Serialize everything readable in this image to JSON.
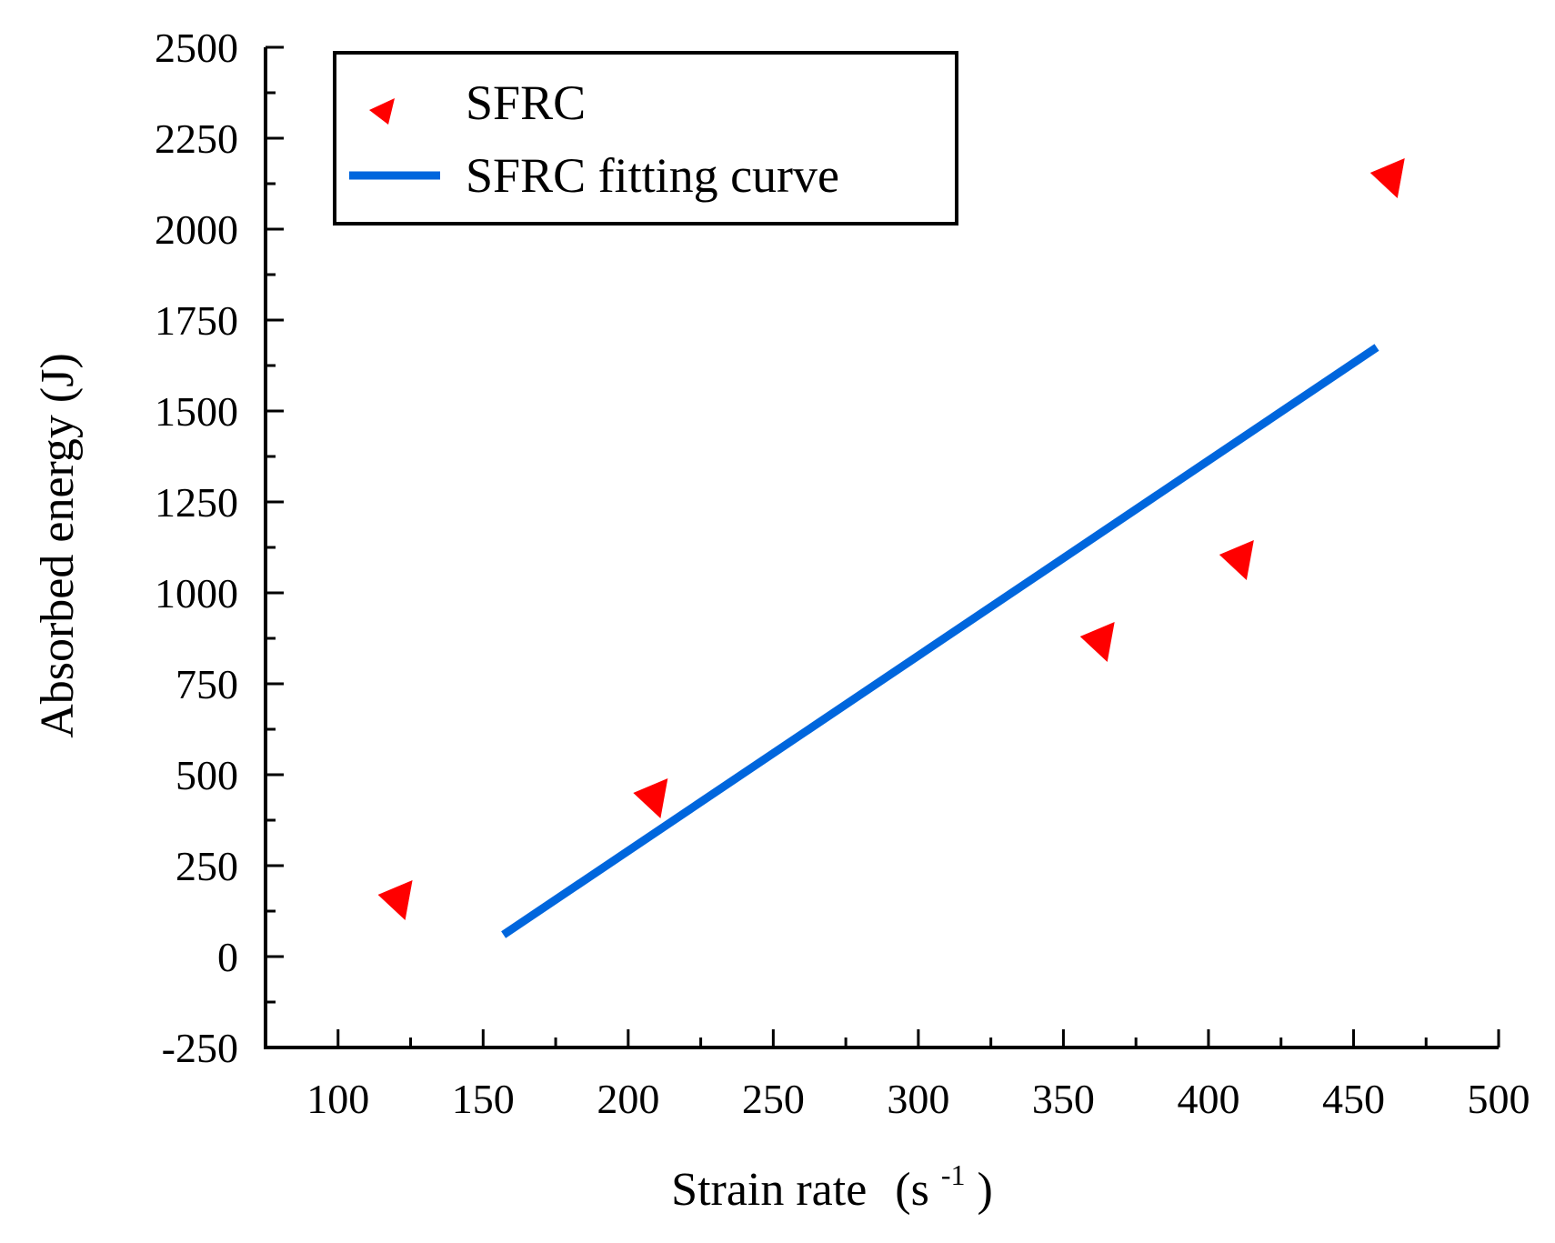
{
  "chart_data": {
    "type": "scatter",
    "title": "",
    "xlabel": "Strain rate (s-1)",
    "xlabel_main": "Strain rate",
    "xlabel_unit_open": "(s",
    "xlabel_unit_sup": "-1",
    "xlabel_unit_close": ")",
    "ylabel": "Absorbed energy (J)",
    "xlim": [
      75,
      500
    ],
    "ylim": [
      -250,
      2500
    ],
    "xticks": [
      100,
      150,
      200,
      250,
      300,
      350,
      400,
      450,
      500
    ],
    "xtick_labels": [
      "100",
      "150",
      "200",
      "250",
      "300",
      "350",
      "400",
      "450",
      "500"
    ],
    "yticks": [
      -250,
      0,
      250,
      500,
      750,
      1000,
      1250,
      1500,
      1750,
      2000,
      2250,
      2500
    ],
    "ytick_labels": [
      "-250",
      "0",
      "250",
      "500",
      "750",
      "1000",
      "1250",
      "1500",
      "1750",
      "2000",
      "2250",
      "2500"
    ],
    "grid": false,
    "legend_position": "top-left",
    "series": [
      {
        "name": "SFRC",
        "kind": "scatter",
        "marker": "left-triangle",
        "color": "#ff0000",
        "x": [
          120,
          208,
          362,
          410,
          462
        ],
        "y": [
          160,
          440,
          870,
          1095,
          2145
        ]
      },
      {
        "name": "SFRC fitting curve",
        "kind": "line",
        "color": "#0066dd",
        "x": [
          157,
          458
        ],
        "y": [
          60,
          1675
        ]
      }
    ]
  }
}
